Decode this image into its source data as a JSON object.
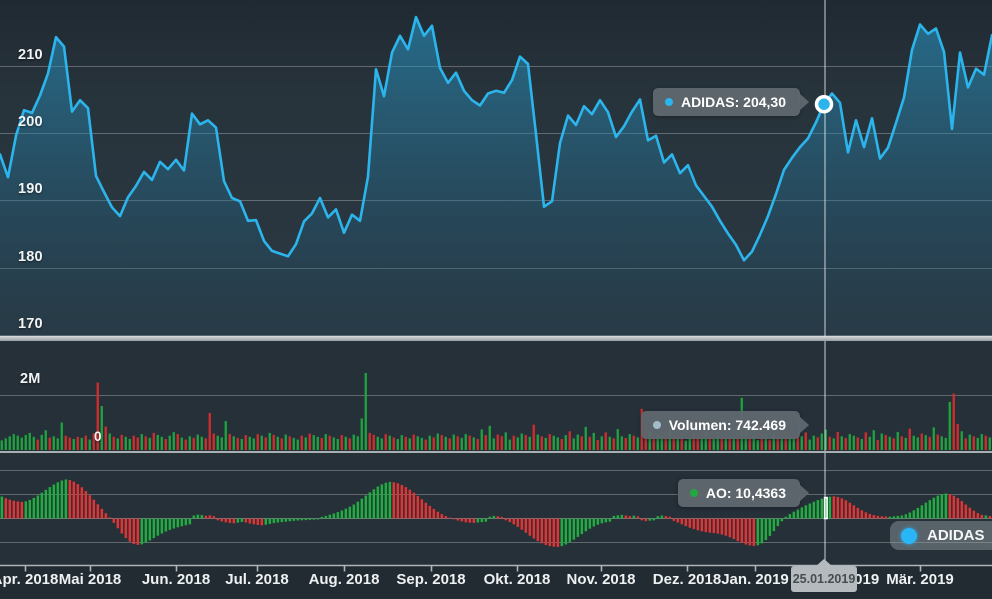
{
  "legend": {
    "label": "ADIDAS",
    "dot_color": "#29b6f6"
  },
  "chart_data": [
    {
      "type": "area",
      "name": "ADIDAS",
      "color": "#2cb5ec",
      "ylabel": "",
      "y_ticks": [
        "210",
        "200",
        "190",
        "180",
        "170"
      ],
      "y_tick_values": [
        210,
        200,
        190,
        180,
        170
      ],
      "x_tick_labels": [
        "Apr. 2018",
        "Mai 2018",
        "Jun. 2018",
        "Jul. 2018",
        "Aug. 2018",
        "Sep. 2018",
        "Okt. 2018",
        "Nov. 2018",
        "Dez. 2018",
        "Jan. 2019",
        "Feb. 2019",
        "Mär. 2019"
      ],
      "prices": [
        196.8,
        193.4,
        199.6,
        203.4,
        203.0,
        205.6,
        208.9,
        214.3,
        212.9,
        203.2,
        204.9,
        203.7,
        193.6,
        191.2,
        188.9,
        187.6,
        190.4,
        192.1,
        194.2,
        193.0,
        195.7,
        194.6,
        196.0,
        194.4,
        202.9,
        201.3,
        201.9,
        200.8,
        192.8,
        190.3,
        189.8,
        186.9,
        187.0,
        183.9,
        182.4,
        182.0,
        181.6,
        183.4,
        186.8,
        188.0,
        190.3,
        187.4,
        188.6,
        185.1,
        187.8,
        186.9,
        193.5,
        209.5,
        205.5,
        212.0,
        214.5,
        212.5,
        217.3,
        214.5,
        216.0,
        209.7,
        207.5,
        209.0,
        206.3,
        204.9,
        204.1,
        205.9,
        206.3,
        206.0,
        207.9,
        211.4,
        210.3,
        199.8,
        189.0,
        189.8,
        198.5,
        202.6,
        201.2,
        204.0,
        202.8,
        204.9,
        203.1,
        199.4,
        201.0,
        203.2,
        205.0,
        198.9,
        199.6,
        195.6,
        196.8,
        194.0,
        195.2,
        192.2,
        190.6,
        189.0,
        186.9,
        185.0,
        183.3,
        181.0,
        182.3,
        184.8,
        187.6,
        190.9,
        194.5,
        196.3,
        197.9,
        199.2,
        201.6,
        204.3,
        205.9,
        204.5,
        197.1,
        201.9,
        197.9,
        202.2,
        196.2,
        197.8,
        201.5,
        205.3,
        212.4,
        216.2,
        214.8,
        215.6,
        212.1,
        200.6,
        212.0,
        206.8,
        209.6,
        208.7,
        214.6
      ],
      "crosshair": {
        "date": "25.01.2019",
        "tooltip": "ADIDAS: 204,30",
        "price": 204.3,
        "index": 103
      }
    },
    {
      "type": "bar",
      "name": "Volumen",
      "tooltip": "Volumen: 742.469",
      "dot_color": "#a3bcc9",
      "up_color": "#1fa33f",
      "down_color": "#d22d2d",
      "y_tick_labels": [
        "2M",
        "0"
      ],
      "values_millions": [
        0.35,
        0.42,
        0.5,
        0.58,
        0.52,
        0.45,
        0.55,
        0.62,
        0.48,
        0.38,
        0.55,
        0.72,
        0.45,
        0.5,
        0.42,
        1.0,
        0.52,
        0.45,
        0.4,
        0.48,
        0.44,
        0.52,
        0.38,
        0.6,
        2.45,
        1.6,
        0.85,
        0.6,
        0.48,
        0.42,
        0.55,
        0.48,
        0.4,
        0.52,
        0.46,
        0.58,
        0.5,
        0.44,
        0.62,
        0.55,
        0.48,
        0.4,
        0.52,
        0.65,
        0.58,
        0.45,
        0.38,
        0.5,
        0.44,
        0.56,
        0.48,
        0.42,
        1.35,
        0.6,
        0.52,
        0.46,
        1.05,
        0.58,
        0.5,
        0.44,
        0.4,
        0.54,
        0.48,
        0.42,
        0.58,
        0.52,
        0.46,
        0.62,
        0.55,
        0.48,
        0.42,
        0.56,
        0.5,
        0.44,
        0.38,
        0.52,
        0.46,
        0.6,
        0.54,
        0.48,
        0.44,
        0.58,
        0.52,
        0.46,
        0.4,
        0.54,
        0.48,
        0.42,
        0.56,
        0.5,
        1.15,
        2.8,
        0.62,
        0.55,
        0.48,
        0.42,
        0.58,
        0.52,
        0.46,
        0.4,
        0.54,
        0.48,
        0.42,
        0.56,
        0.5,
        0.44,
        0.38,
        0.52,
        0.46,
        0.6,
        0.54,
        0.48,
        0.42,
        0.56,
        0.5,
        0.44,
        0.58,
        0.52,
        0.46,
        0.4,
        0.75,
        0.54,
        0.88,
        0.42,
        0.56,
        0.5,
        0.64,
        0.38,
        0.52,
        0.46,
        0.6,
        0.54,
        0.48,
        0.92,
        0.56,
        0.5,
        0.44,
        0.58,
        0.52,
        0.46,
        0.4,
        0.54,
        0.68,
        0.42,
        0.56,
        0.5,
        0.84,
        0.48,
        0.62,
        0.36,
        0.5,
        0.64,
        0.48,
        0.42,
        0.76,
        0.5,
        0.44,
        0.58,
        0.52,
        0.46,
        1.5,
        0.94,
        0.68,
        0.42,
        0.56,
        0.5,
        0.44,
        0.78,
        0.52,
        0.46,
        0.6,
        0.34,
        0.48,
        0.62,
        0.56,
        0.4,
        0.74,
        0.48,
        0.42,
        0.66,
        0.5,
        0.44,
        0.58,
        0.52,
        0.46,
        1.9,
        0.84,
        0.48,
        0.72,
        0.36,
        0.6,
        0.54,
        0.38,
        0.62,
        0.46,
        0.5,
        0.74,
        0.48,
        0.42,
        0.56,
        0.5,
        0.64,
        0.38,
        0.52,
        0.46,
        0.6,
        0.74,
        0.48,
        0.42,
        0.66,
        0.5,
        0.44,
        0.58,
        0.52,
        0.46,
        0.4,
        0.64,
        0.48,
        0.72,
        0.36,
        0.6,
        0.54,
        0.48,
        0.42,
        0.66,
        0.5,
        0.44,
        0.78,
        0.52,
        0.46,
        0.6,
        0.54,
        0.48,
        0.82,
        0.56,
        0.5,
        0.44,
        1.75,
        2.05,
        0.94,
        0.68,
        0.42,
        0.56,
        0.5,
        0.44,
        0.58,
        0.52,
        0.46
      ],
      "directions": "gggggggggrggrgggrrgrgrgrrgrgrgrggrrgrgrggrggrgrgrggrrrgggrgrgrggrgrgrgrgrggrgrggrgrggrgrggggrrggrgrggrgrggrgrgrgrgrggrgrgrggrrggrggrgrgrgrggrgrggrgrgrgrgrggrgrgrrgrggrgrgrggrrggrggrgrgrggrggrgrgrgrggrgrggrggrgrgrggrgrggrgrgrgrgrggrgrgrgggrrgrgrggrg"
    },
    {
      "type": "bar",
      "name": "AO",
      "tooltip": "AO: 10,4363",
      "dot_color": "#22a83e",
      "up_color": "#21ad3f",
      "down_color": "#e23434",
      "highlight_index": 206,
      "values": [
        11.0,
        10.1,
        9.4,
        8.9,
        8.5,
        8.3,
        8.6,
        9.3,
        10.3,
        11.5,
        12.9,
        14.3,
        15.7,
        17.0,
        18.1,
        19.0,
        19.5,
        19.2,
        18.4,
        17.2,
        15.6,
        13.7,
        11.6,
        9.4,
        7.1,
        4.8,
        2.6,
        0.6,
        -2.2,
        -4.9,
        -7.5,
        -9.8,
        -11.6,
        -12.8,
        -13.2,
        -12.9,
        -12.1,
        -11.0,
        -9.8,
        -8.6,
        -7.5,
        -6.5,
        -5.7,
        -5.0,
        -4.4,
        -3.9,
        -3.4,
        -2.9,
        1.5,
        1.9,
        1.7,
        1.4,
        1.6,
        1.2,
        -0.9,
        -1.5,
        -1.9,
        -2.2,
        -2.4,
        -2.1,
        -1.7,
        -2.0,
        -2.5,
        -2.9,
        -3.2,
        -3.4,
        -3.1,
        -2.7,
        -2.3,
        -2.0,
        -1.8,
        -1.6,
        -1.4,
        -1.2,
        -1.0,
        -0.9,
        -0.8,
        -0.7,
        -0.6,
        -0.5,
        0.8,
        1.3,
        1.9,
        2.5,
        3.2,
        4.0,
        4.9,
        5.9,
        7.0,
        8.4,
        9.9,
        11.5,
        13.1,
        14.6,
        16.0,
        17.1,
        17.9,
        18.3,
        18.1,
        17.6,
        16.8,
        15.7,
        14.4,
        12.9,
        11.3,
        9.6,
        7.9,
        6.3,
        4.8,
        3.4,
        2.2,
        1.2,
        0.4,
        -0.4,
        -1.0,
        -1.5,
        -1.9,
        -2.1,
        -2.2,
        -2.0,
        -1.8,
        -1.6,
        0.9,
        1.3,
        1.1,
        0.8,
        -0.9,
        -1.8,
        -2.9,
        -4.2,
        -5.6,
        -7.1,
        -8.6,
        -10.0,
        -11.3,
        -12.4,
        -13.2,
        -13.8,
        -14.1,
        -14.2,
        -13.8,
        -13.0,
        -11.9,
        -10.6,
        -9.2,
        -7.8,
        -6.4,
        -5.1,
        -4.0,
        -3.1,
        -2.4,
        -1.9,
        -1.6,
        1.3,
        1.6,
        1.8,
        1.5,
        1.2,
        1.4,
        1.1,
        -0.9,
        -1.3,
        -1.1,
        -0.9,
        1.2,
        1.5,
        1.2,
        0.9,
        -1.2,
        -2.0,
        -2.9,
        -3.8,
        -4.6,
        -5.3,
        -5.9,
        -6.4,
        -6.8,
        -7.1,
        -7.3,
        -7.6,
        -8.0,
        -8.6,
        -9.4,
        -10.3,
        -11.3,
        -12.2,
        -13.0,
        -13.5,
        -13.7,
        -13.4,
        -12.4,
        -10.8,
        -8.7,
        -6.3,
        -3.8,
        -1.4,
        0.9,
        2.2,
        3.4,
        4.5,
        5.6,
        6.6,
        7.5,
        8.4,
        9.2,
        9.9,
        10.44,
        10.9,
        11.1,
        10.8,
        10.1,
        9.1,
        7.9,
        6.6,
        5.3,
        4.1,
        3.1,
        2.3,
        1.7,
        1.3,
        1.1,
        1.0,
        0.9,
        1.1,
        1.3,
        1.5,
        2.1,
        3.0,
        4.1,
        5.3,
        6.6,
        7.9,
        9.2,
        10.4,
        11.4,
        12.1,
        12.5,
        12.2,
        11.4,
        10.2,
        8.7,
        7.0,
        5.4,
        3.9,
        2.7,
        1.8,
        1.6,
        1.3
      ],
      "directions": "grrrrrgggggggggggrrrrrrrrrrrrrrrrrrggggggggggggggggrrrrrrrrggrrrrrggggggggggggggggggggggggggggggggrrrrrrrrrrrrrrrrrrrrrgggggrrrrrrrrrrrrrrrrggggggggggggggggrrgrrrggggrrrrrrrrrrrrrrrrrrrrrrrgggggggggggggggggggrrrrrrrrrrrrrrgggggggggggggggrrrrrrrrrgr"
    }
  ]
}
